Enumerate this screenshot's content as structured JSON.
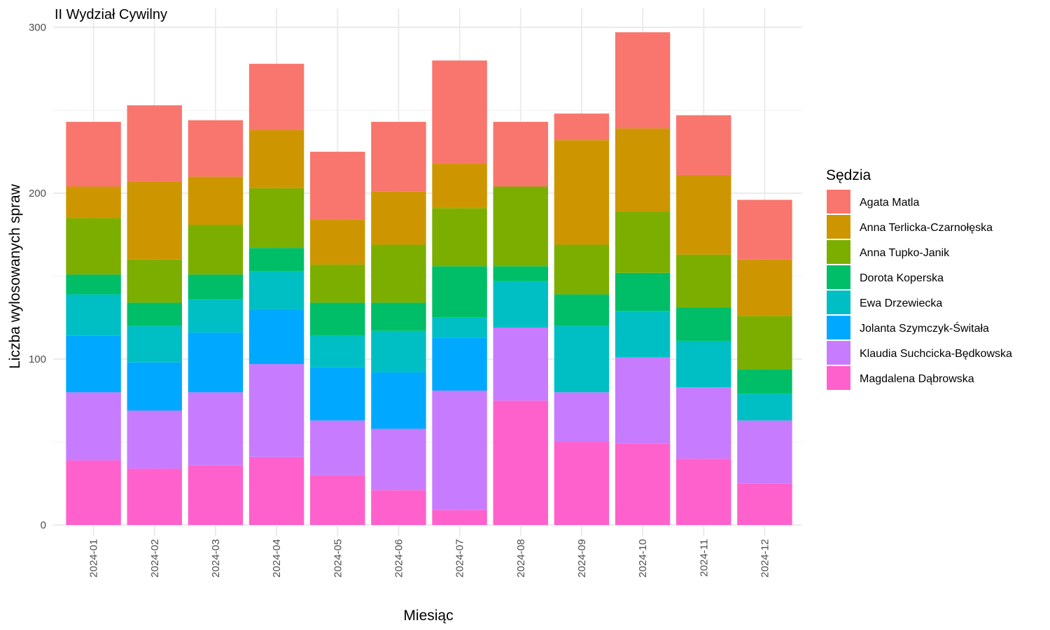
{
  "chart_data": {
    "type": "bar",
    "stacked": true,
    "title": "II Wydział Cywilny",
    "xlabel": "Miesiąc",
    "ylabel": "Liczba wylosowanych spraw",
    "ylim": [
      0,
      300
    ],
    "yticks": [
      0,
      100,
      200,
      300
    ],
    "grid": true,
    "legend_title": "Sędzia",
    "legend_position": "right",
    "categories": [
      "2024-01",
      "2024-02",
      "2024-03",
      "2024-04",
      "2024-05",
      "2024-06",
      "2024-07",
      "2024-08",
      "2024-09",
      "2024-10",
      "2024-11",
      "2024-12"
    ],
    "series": [
      {
        "name": "Magdalena Dąbrowska",
        "color": "#FF61CC",
        "values": [
          39,
          34,
          36,
          41,
          30,
          21,
          9,
          75,
          50,
          49,
          40,
          25
        ]
      },
      {
        "name": "Klaudia Suchcicka-Będkowska",
        "color": "#C77CFF",
        "values": [
          41,
          35,
          44,
          56,
          33,
          37,
          72,
          44,
          30,
          52,
          43,
          38
        ]
      },
      {
        "name": "Jolanta Szymczyk-Świtała",
        "color": "#00A9FF",
        "values": [
          34,
          29,
          36,
          33,
          32,
          34,
          32,
          0,
          0,
          0,
          0,
          0
        ]
      },
      {
        "name": "Ewa Drzewiecka",
        "color": "#00BFC4",
        "values": [
          25,
          22,
          20,
          23,
          19,
          25,
          12,
          28,
          40,
          28,
          28,
          16
        ]
      },
      {
        "name": "Dorota Koperska",
        "color": "#00BE67",
        "values": [
          12,
          14,
          15,
          14,
          20,
          17,
          31,
          9,
          19,
          23,
          20,
          15
        ]
      },
      {
        "name": "Anna Tupko-Janik",
        "color": "#7CAE00",
        "values": [
          34,
          26,
          30,
          36,
          23,
          35,
          35,
          48,
          30,
          37,
          32,
          32
        ]
      },
      {
        "name": "Anna Terlicka-Czarnołęska",
        "color": "#CD9600",
        "values": [
          19,
          47,
          29,
          35,
          27,
          32,
          27,
          0,
          63,
          50,
          48,
          34
        ]
      },
      {
        "name": "Agata Matla",
        "color": "#F8766D",
        "values": [
          39,
          46,
          34,
          40,
          41,
          42,
          62,
          39,
          16,
          58,
          36,
          36
        ]
      }
    ],
    "legend_order": [
      "Agata Matla",
      "Anna Terlicka-Czarnołęska",
      "Anna Tupko-Janik",
      "Dorota Koperska",
      "Ewa Drzewiecka",
      "Jolanta Szymczyk-Świtała",
      "Klaudia Suchcicka-Będkowska",
      "Magdalena Dąbrowska"
    ]
  }
}
